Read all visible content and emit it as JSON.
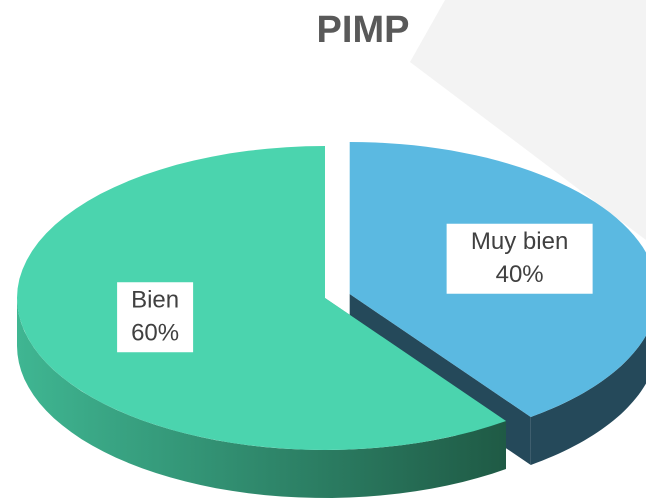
{
  "chart_data": {
    "type": "pie",
    "title": "PIMP",
    "categories": [
      "Muy bien",
      "Bien"
    ],
    "values": [
      40,
      60
    ],
    "value_labels": [
      "40%",
      "60%"
    ],
    "colors": [
      "#5bb9e1",
      "#4bd4ae"
    ],
    "side_colors": [
      "#25495a",
      "#2b8a6c"
    ],
    "explode": [
      1,
      0
    ]
  }
}
